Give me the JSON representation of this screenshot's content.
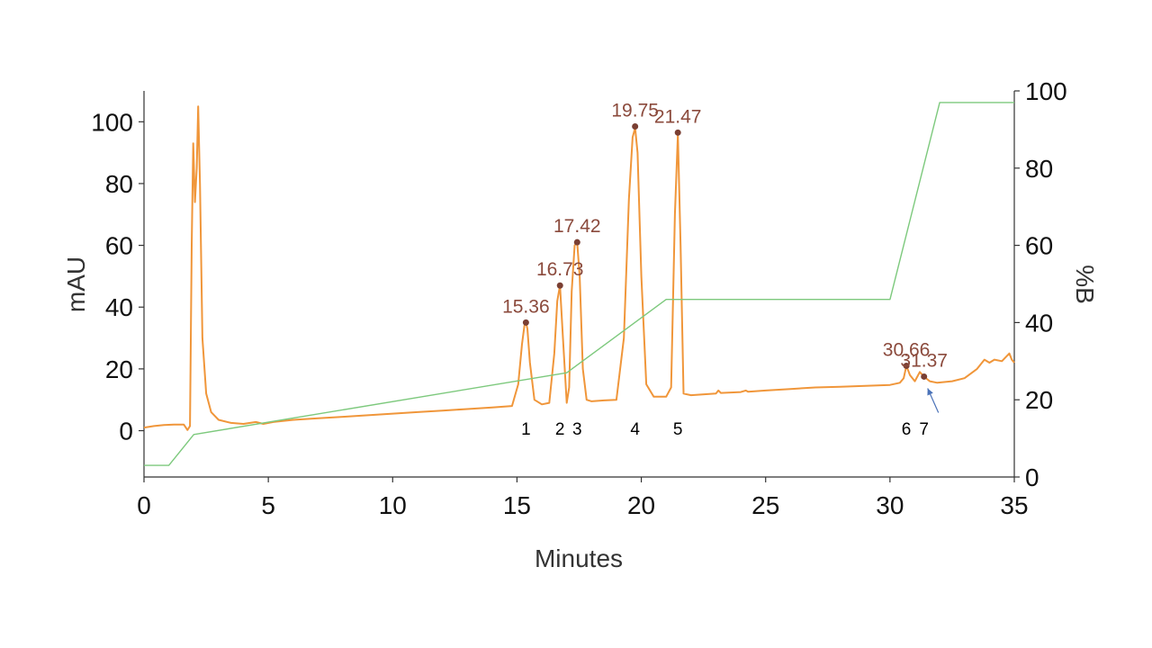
{
  "chart_data": {
    "type": "line",
    "title": "",
    "xlabel": "Minutes",
    "ylabel": "mAU",
    "y2label": "%B",
    "xlim": [
      0,
      35
    ],
    "ylim": [
      -15,
      110
    ],
    "y2lim": [
      0,
      100
    ],
    "x_ticks": [
      "0",
      "5",
      "10",
      "15",
      "20",
      "25",
      "30",
      "35"
    ],
    "x_tick_values": [
      0,
      5,
      10,
      15,
      20,
      25,
      30,
      35
    ],
    "y_ticks": [
      "0",
      "20",
      "40",
      "60",
      "80",
      "100"
    ],
    "y_tick_values": [
      0,
      20,
      40,
      60,
      80,
      100
    ],
    "y2_ticks": [
      "0",
      "20",
      "40",
      "60",
      "80",
      "100"
    ],
    "y2_tick_values": [
      0,
      20,
      40,
      60,
      80,
      100
    ],
    "grid": false,
    "colors": {
      "absorbance": "#f0963a",
      "gradient": "#7dc97d",
      "peak_label": "#8b4a3c",
      "marker": "#7a3f33",
      "arrow": "#4a72b8",
      "axis": "#333333"
    },
    "series": [
      {
        "role": "absorbance",
        "axis": "left",
        "x": [
          0,
          0.4,
          0.8,
          1.2,
          1.6,
          1.75,
          1.85,
          1.92,
          1.98,
          2.05,
          2.12,
          2.18,
          2.25,
          2.35,
          2.5,
          2.7,
          3.0,
          3.5,
          4.0,
          4.5,
          4.8,
          5.2,
          6,
          7,
          8,
          9,
          10,
          11,
          12,
          13,
          14,
          14.8,
          15.05,
          15.2,
          15.3,
          15.36,
          15.42,
          15.52,
          15.7,
          16.0,
          16.3,
          16.5,
          16.62,
          16.73,
          16.85,
          17.0,
          17.1,
          17.2,
          17.32,
          17.42,
          17.52,
          17.65,
          17.8,
          18.0,
          18.5,
          19.0,
          19.3,
          19.5,
          19.65,
          19.75,
          19.85,
          20.0,
          20.2,
          20.5,
          21.0,
          21.2,
          21.35,
          21.47,
          21.58,
          21.7,
          22.0,
          23.0,
          23.1,
          23.2,
          24.0,
          24.2,
          24.3,
          25.0,
          26.0,
          27.0,
          28.0,
          29.0,
          30.0,
          30.4,
          30.55,
          30.66,
          30.8,
          31.0,
          31.2,
          31.37,
          31.6,
          31.9,
          32.5,
          33.0,
          33.5,
          33.8,
          34.0,
          34.2,
          34.5,
          34.8,
          34.9,
          35.0
        ],
        "values": [
          1,
          1.5,
          1.8,
          2,
          2,
          0.2,
          1.5,
          60,
          93,
          74,
          85,
          105,
          80,
          30,
          12,
          6,
          3.5,
          2.5,
          2.2,
          2.8,
          2.2,
          2.8,
          3.5,
          4,
          4.5,
          5,
          5.5,
          6,
          6.5,
          7,
          7.5,
          8,
          15,
          28,
          34,
          35,
          33,
          22,
          10,
          8.5,
          9,
          25,
          42,
          47,
          30,
          9,
          14,
          45,
          60,
          61,
          50,
          20,
          10,
          9.5,
          9.8,
          10,
          30,
          75,
          95,
          98,
          90,
          50,
          15,
          11,
          11,
          14,
          70,
          96,
          60,
          12,
          11.5,
          12,
          13,
          12.2,
          12.5,
          13,
          12.6,
          13,
          13.5,
          14,
          14.2,
          14.5,
          14.8,
          15.5,
          17,
          21,
          18,
          16,
          19,
          17.5,
          16,
          15.5,
          16,
          17,
          20,
          23,
          22,
          23,
          22.5,
          25,
          23,
          22
        ],
        "peaks": [
          {
            "x": 15.36,
            "y": 35,
            "label": "15.36",
            "number": "1"
          },
          {
            "x": 16.73,
            "y": 47,
            "label": "16.73",
            "number": "2"
          },
          {
            "x": 17.42,
            "y": 61,
            "label": "17.42",
            "number": "3"
          },
          {
            "x": 19.75,
            "y": 98.5,
            "label": "19.75",
            "number": "4"
          },
          {
            "x": 21.47,
            "y": 96.5,
            "label": "21.47",
            "number": "5"
          },
          {
            "x": 30.66,
            "y": 21,
            "label": "30.66",
            "number": "6"
          },
          {
            "x": 31.37,
            "y": 17.5,
            "label": "31.37",
            "number": "7"
          }
        ]
      },
      {
        "role": "gradient",
        "axis": "right",
        "x": [
          0,
          1,
          2,
          17,
          21,
          30,
          32,
          35
        ],
        "values": [
          3,
          3,
          11,
          27,
          46,
          46,
          97,
          97
        ]
      }
    ],
    "annotations": [
      {
        "type": "arrow",
        "target_peak": "31.37"
      }
    ]
  }
}
